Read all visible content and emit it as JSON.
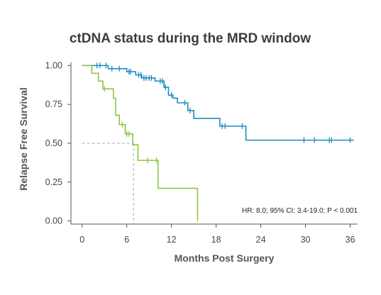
{
  "chart_data": {
    "type": "line",
    "subtype": "kaplan-meier",
    "title": "ctDNA status during the MRD window",
    "xlabel": "Months Post Surgery",
    "ylabel": "Relapse Free Survival",
    "xlim": [
      -1.5,
      37
    ],
    "ylim": [
      -0.02,
      1.02
    ],
    "x_ticks": [
      0,
      6,
      12,
      18,
      24,
      30,
      36
    ],
    "y_ticks": [
      0.0,
      0.25,
      0.5,
      0.75,
      1.0
    ],
    "y_tick_labels": [
      "0.00",
      "0.25",
      "0.50",
      "0.75",
      "1.00"
    ],
    "grid": false,
    "annotation": "HR: 8.0; 95% CI: 3.4-19.0; P < 0.001",
    "median_reference": {
      "x": 6.9,
      "y": 0.5
    },
    "series": [
      {
        "color": "#1e8bc3",
        "steps": [
          [
            0,
            1.0
          ],
          [
            3.5,
            0.98
          ],
          [
            6.0,
            0.96
          ],
          [
            7.2,
            0.94
          ],
          [
            8.0,
            0.92
          ],
          [
            9.8,
            0.9
          ],
          [
            11.0,
            0.86
          ],
          [
            11.6,
            0.81
          ],
          [
            12.2,
            0.79
          ],
          [
            12.8,
            0.76
          ],
          [
            14.2,
            0.71
          ],
          [
            15.0,
            0.66
          ],
          [
            18.5,
            0.61
          ],
          [
            22.0,
            0.52
          ],
          [
            36.5,
            0.52
          ]
        ],
        "censor_x": [
          2.0,
          2.4,
          3.2,
          4.0,
          5.0,
          6.3,
          6.5,
          7.6,
          7.9,
          8.3,
          8.6,
          9.0,
          9.3,
          10.5,
          10.8,
          11.2,
          12.0,
          13.8,
          14.5,
          18.8,
          19.2,
          21.5,
          29.8,
          31.2,
          33.2,
          33.5,
          36.0
        ]
      },
      {
        "color": "#8dc63f",
        "steps": [
          [
            0,
            1.0
          ],
          [
            1.3,
            0.95
          ],
          [
            2.2,
            0.9
          ],
          [
            2.8,
            0.85
          ],
          [
            4.2,
            0.79
          ],
          [
            4.5,
            0.68
          ],
          [
            5.0,
            0.62
          ],
          [
            5.8,
            0.56
          ],
          [
            6.8,
            0.49
          ],
          [
            7.5,
            0.39
          ],
          [
            10.2,
            0.21
          ],
          [
            15.5,
            0.0
          ]
        ],
        "censor_x": [
          3.0,
          5.4,
          6.0,
          6.3,
          8.8,
          10.0
        ]
      }
    ]
  }
}
